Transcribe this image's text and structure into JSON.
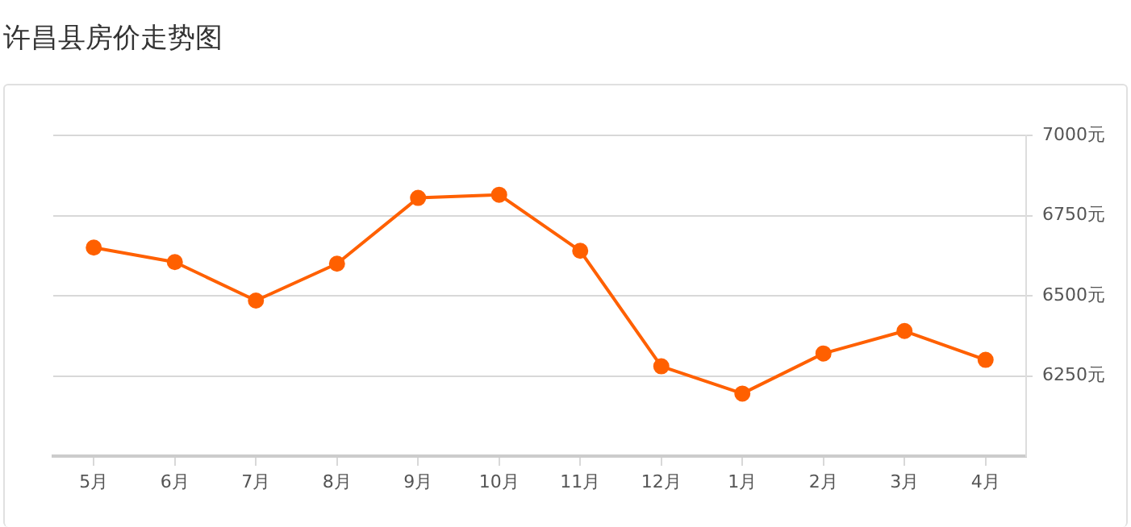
{
  "chart_data": {
    "type": "line",
    "title": "许昌县房价走势图",
    "categories": [
      "5月",
      "6月",
      "7月",
      "8月",
      "9月",
      "10月",
      "11月",
      "12月",
      "1月",
      "2月",
      "3月",
      "4月"
    ],
    "series": [
      {
        "color": "#ff6000",
        "values": [
          6650,
          6605,
          6485,
          6600,
          6805,
          6815,
          6640,
          6280,
          6195,
          6320,
          6390,
          6300
        ]
      }
    ],
    "ylim": [
      6000,
      7000
    ],
    "yticks": [
      {
        "value": 6250,
        "label": "6250元"
      },
      {
        "value": 6500,
        "label": "6500元"
      },
      {
        "value": 6750,
        "label": "6750元"
      },
      {
        "value": 7000,
        "label": "7000元"
      }
    ],
    "grid": "y",
    "marker": "circle",
    "line_style": "solid"
  }
}
